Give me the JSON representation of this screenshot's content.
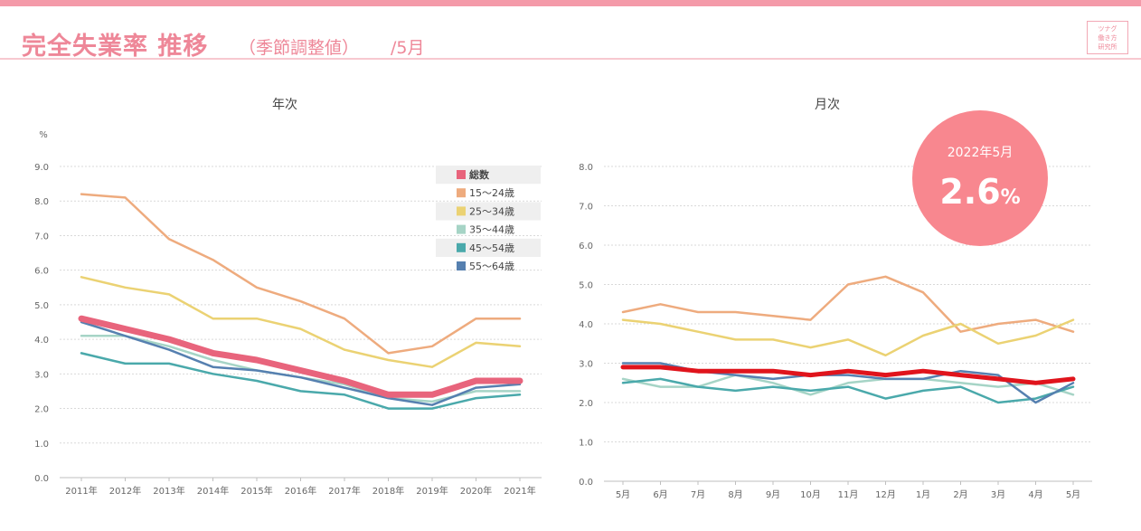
{
  "header": {
    "title": "完全失業率 推移",
    "subtitle": "（季節調整値）",
    "month": "/5月",
    "logo_lines": [
      "ツナグ",
      "働き方",
      "研究所"
    ]
  },
  "colors": {
    "accent": "#ee8798",
    "top_bar": "#f49aa9",
    "badge": "#f8878f",
    "series": {
      "総数_annual": "#e8647c",
      "総数_monthly": "#e0141c",
      "15〜24歳": "#eeab7e",
      "25〜34歳": "#ebd273",
      "35〜44歳": "#a6d4c6",
      "45〜54歳": "#4aa9ab",
      "55〜64歳": "#5680b0"
    }
  },
  "badge": {
    "label": "2022年5月",
    "value": "2.6",
    "unit": "%"
  },
  "chart_data": [
    {
      "type": "line",
      "title": "年次",
      "ylabel": "%",
      "xlabel": "",
      "ylim": [
        0,
        9
      ],
      "yticks": [
        "0.0",
        "1.0",
        "2.0",
        "3.0",
        "4.0",
        "5.0",
        "6.0",
        "7.0",
        "8.0",
        "9.0"
      ],
      "grid": true,
      "legend": "top-right",
      "categories": [
        "2011年",
        "2012年",
        "2013年",
        "2014年",
        "2015年",
        "2016年",
        "2017年",
        "2018年",
        "2019年",
        "2020年",
        "2021年"
      ],
      "series": [
        {
          "name": "総数",
          "values": [
            4.6,
            4.3,
            4.0,
            3.6,
            3.4,
            3.1,
            2.8,
            2.4,
            2.4,
            2.8,
            2.8
          ]
        },
        {
          "name": "15〜24歳",
          "values": [
            8.2,
            8.1,
            6.9,
            6.3,
            5.5,
            5.1,
            4.6,
            3.6,
            3.8,
            4.6,
            4.6
          ]
        },
        {
          "name": "25〜34歳",
          "values": [
            5.8,
            5.5,
            5.3,
            4.6,
            4.6,
            4.3,
            3.7,
            3.4,
            3.2,
            3.9,
            3.8
          ]
        },
        {
          "name": "35〜44歳",
          "values": [
            4.1,
            4.1,
            3.8,
            3.4,
            3.1,
            2.9,
            2.7,
            2.3,
            2.2,
            2.5,
            2.5
          ]
        },
        {
          "name": "45〜54歳",
          "values": [
            3.6,
            3.3,
            3.3,
            3.0,
            2.8,
            2.5,
            2.4,
            2.0,
            2.0,
            2.3,
            2.4
          ]
        },
        {
          "name": "55〜64歳",
          "values": [
            4.5,
            4.1,
            3.7,
            3.2,
            3.1,
            2.9,
            2.6,
            2.3,
            2.1,
            2.6,
            2.7
          ]
        }
      ]
    },
    {
      "type": "line",
      "title": "月次",
      "ylabel": "",
      "xlabel": "",
      "ylim": [
        0,
        8
      ],
      "yticks": [
        "0.0",
        "1.0",
        "2.0",
        "3.0",
        "4.0",
        "5.0",
        "6.0",
        "7.0",
        "8.0"
      ],
      "grid": true,
      "categories": [
        "5月",
        "6月",
        "7月",
        "8月",
        "9月",
        "10月",
        "11月",
        "12月",
        "1月",
        "2月",
        "3月",
        "4月",
        "5月"
      ],
      "series": [
        {
          "name": "総数",
          "values": [
            2.9,
            2.9,
            2.8,
            2.8,
            2.8,
            2.7,
            2.8,
            2.7,
            2.8,
            2.7,
            2.6,
            2.5,
            2.6
          ]
        },
        {
          "name": "15〜24歳",
          "values": [
            4.3,
            4.5,
            4.3,
            4.3,
            4.2,
            4.1,
            5.0,
            5.2,
            4.8,
            3.8,
            4.0,
            4.1,
            3.8
          ]
        },
        {
          "name": "25〜34歳",
          "values": [
            4.1,
            4.0,
            3.8,
            3.6,
            3.6,
            3.4,
            3.6,
            3.2,
            3.7,
            4.0,
            3.5,
            3.7,
            4.1
          ]
        },
        {
          "name": "35〜44歳",
          "values": [
            2.6,
            2.4,
            2.4,
            2.7,
            2.5,
            2.2,
            2.5,
            2.6,
            2.6,
            2.5,
            2.4,
            2.5,
            2.2
          ]
        },
        {
          "name": "45〜54歳",
          "values": [
            2.5,
            2.6,
            2.4,
            2.3,
            2.4,
            2.3,
            2.4,
            2.1,
            2.3,
            2.4,
            2.0,
            2.1,
            2.4
          ]
        },
        {
          "name": "55〜64歳",
          "values": [
            3.0,
            3.0,
            2.8,
            2.7,
            2.6,
            2.7,
            2.7,
            2.6,
            2.6,
            2.8,
            2.7,
            2.0,
            2.5
          ]
        }
      ]
    }
  ]
}
